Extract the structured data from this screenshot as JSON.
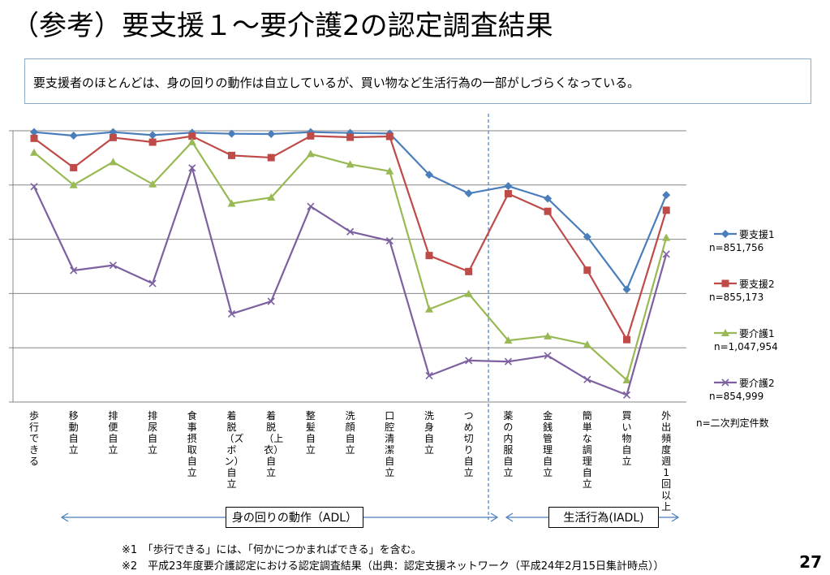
{
  "title": "（参考）要支援１～要介護2の認定調査結果",
  "summary": "要支援者のほとんどは、身の回りの動作は自立しているが、買い物など生活行為の一部がしづらくなっている。",
  "chart_data": {
    "type": "line",
    "categories": [
      "歩行できる",
      "移動自立",
      "排便自立",
      "排尿自立",
      "食事摂取自立",
      "着脱（ズボン）自立",
      "着脱（上衣）自立",
      "整髪自立",
      "洗顔自立",
      "口腔清潔自立",
      "洗身自立",
      "つめ切り自立",
      "薬の内服自立",
      "金銭管理自立",
      "簡単な調理自立",
      "買い物自立",
      "外出頻度週1回以上"
    ],
    "ylim": [
      0,
      100
    ],
    "gridlines": 5,
    "grid": true,
    "series": [
      {
        "name": "要支援1",
        "n_label": "n=851,756",
        "color": "#4a7ebb",
        "marker": "diamond",
        "values": [
          99.5,
          98.2,
          99.5,
          98.4,
          99.3,
          98.9,
          98.8,
          99.5,
          99.2,
          99.0,
          83.8,
          76.9,
          79.6,
          75.0,
          60.9,
          41.5,
          76.3
        ]
      },
      {
        "name": "要支援2",
        "n_label": "n=855,173",
        "color": "#be4b48",
        "marker": "square",
        "values": [
          97.2,
          86.4,
          97.5,
          95.8,
          98.0,
          90.9,
          90.1,
          98.1,
          97.6,
          97.9,
          54.0,
          48.1,
          76.8,
          70.3,
          48.6,
          23.0,
          70.7
        ]
      },
      {
        "name": "要介護1",
        "n_label": "n=1,047,954",
        "color": "#98b954",
        "marker": "triangle",
        "values": [
          92.0,
          80.0,
          88.5,
          80.3,
          95.9,
          73.2,
          75.4,
          91.5,
          87.6,
          85.1,
          34.2,
          39.9,
          22.7,
          24.3,
          21.2,
          8.1,
          60.6
        ]
      },
      {
        "name": "要介護2",
        "n_label": "n=854,999",
        "color": "#7d60a0",
        "marker": "x",
        "values": [
          79.4,
          48.5,
          50.4,
          43.7,
          86.3,
          32.5,
          37.1,
          72.1,
          62.8,
          59.4,
          9.7,
          15.3,
          14.9,
          17.1,
          8.3,
          2.6,
          54.5
        ]
      }
    ],
    "divider_after_index": 11,
    "groups": [
      {
        "label": "身の回りの動作（ADL）"
      },
      {
        "label": "生活行為(IADL)"
      }
    ],
    "n_note": "n=二次判定件数"
  },
  "notes": [
    "※1　「歩行できる」には、「何かにつかまればできる」を含む。",
    "※2　平成23年度要介護認定における認定調査結果（出典：認定支援ネットワーク（平成24年2月15日集計時点））"
  ],
  "page_number": "27"
}
